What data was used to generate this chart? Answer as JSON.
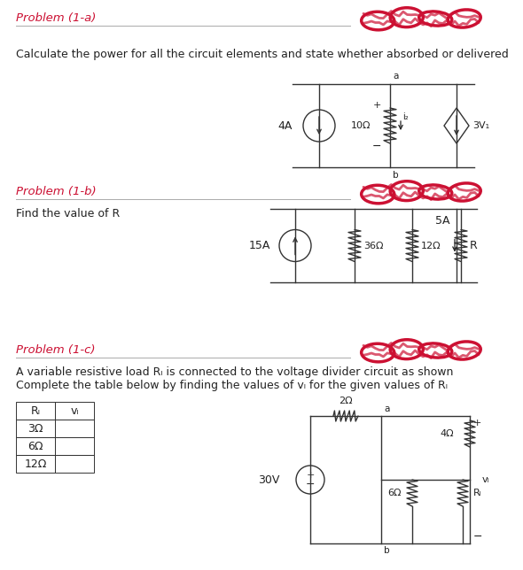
{
  "bg_color": "#ffffff",
  "problem_color": "#cc1133",
  "text_color": "#222222",
  "line_color": "#333333",
  "scribble_color": "#cc1133",
  "problem_a_title": "Problem (1-a)",
  "problem_a_text": "Calculate the power for all the circuit elements and state whether absorbed or delivered",
  "problem_b_title": "Problem (1-b)",
  "problem_b_text": "Find the value of R",
  "problem_c_title": "Problem (1-c)",
  "problem_c_text1": "A variable resistive load Rₗ is connected to the voltage divider circuit as shown",
  "problem_c_text2": "Complete the table below by finding the values of vₗ for the given values of Rₗ",
  "table_col1": [
    "Rₗ",
    "3Ω",
    "6Ω",
    "12Ω"
  ],
  "table_col2": [
    "vₗ",
    "",
    "",
    ""
  ]
}
